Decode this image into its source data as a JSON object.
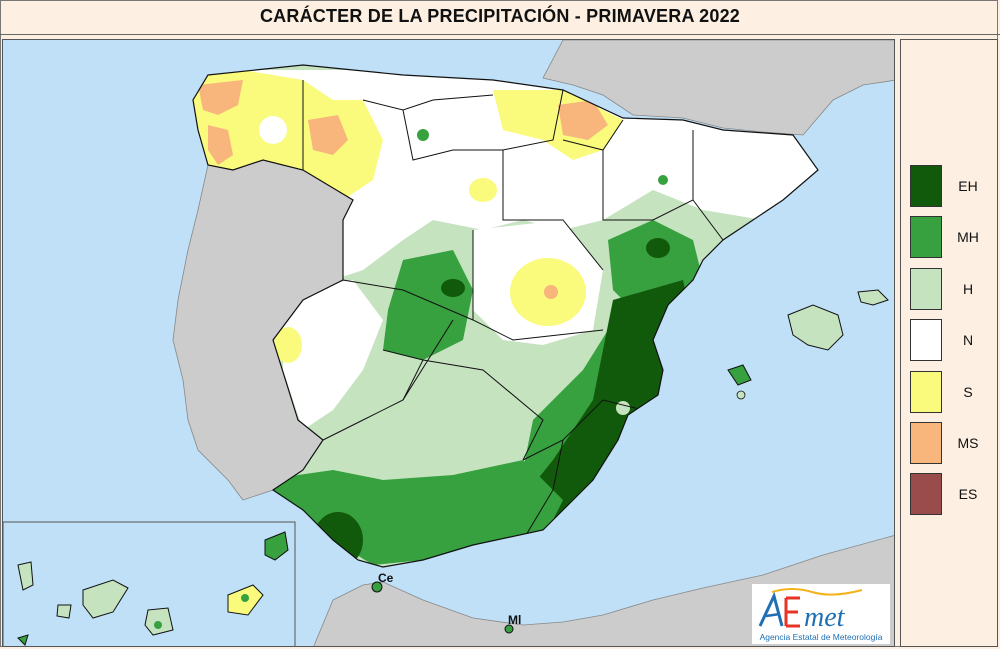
{
  "title": "CARÁCTER DE LA PRECIPITACIÓN - PRIMAVERA  2022",
  "legend": [
    {
      "code": "EH",
      "color": "#115a0c"
    },
    {
      "code": "MH",
      "color": "#37a03f"
    },
    {
      "code": "H",
      "color": "#c6e3c0"
    },
    {
      "code": "N",
      "color": "#ffffff"
    },
    {
      "code": "S",
      "color": "#fafa7d"
    },
    {
      "code": "MS",
      "color": "#f8b67d"
    },
    {
      "code": "ES",
      "color": "#9a4c4c"
    }
  ],
  "cities": {
    "ceuta": "Ce",
    "melilla": "Ml"
  },
  "logo": {
    "brand": "AEmet",
    "subtitle": "Agencia Estatal de Meteorología"
  },
  "colors": {
    "sea": "#bfe0f7",
    "foreign_land": "#cccccc",
    "background": "#fdf0e2"
  }
}
